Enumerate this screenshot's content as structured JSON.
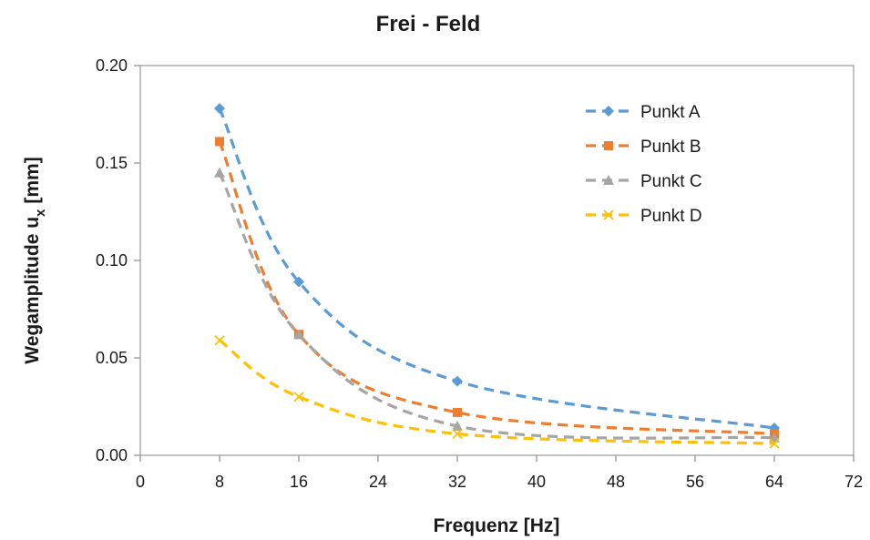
{
  "chart_data": {
    "type": "line",
    "title": "Frei - Feld",
    "xlabel": "Frequenz [Hz]",
    "ylabel": "Wegamplitude u",
    "ylabel_subscript": "x",
    "ylabel_unit": "[mm]",
    "xlim": [
      0,
      72
    ],
    "ylim": [
      0,
      0.2
    ],
    "x_ticks": [
      0,
      8,
      16,
      24,
      32,
      40,
      48,
      56,
      64,
      72
    ],
    "y_ticks": [
      0.0,
      0.05,
      0.1,
      0.15,
      0.2
    ],
    "x_tick_labels": [
      "0",
      "8",
      "16",
      "24",
      "32",
      "40",
      "48",
      "56",
      "64",
      "72"
    ],
    "y_tick_labels": [
      "0.00",
      "0.05",
      "0.10",
      "0.15",
      "0.20"
    ],
    "grid": false,
    "legend_position": "top-right",
    "x": [
      8,
      16,
      32,
      64
    ],
    "series": [
      {
        "name": "Punkt A",
        "values": [
          0.178,
          0.089,
          0.038,
          0.014
        ],
        "color": "#5b9bd5",
        "marker": "diamond"
      },
      {
        "name": "Punkt B",
        "values": [
          0.161,
          0.062,
          0.022,
          0.011
        ],
        "color": "#ed7d31",
        "marker": "square"
      },
      {
        "name": "Punkt C",
        "values": [
          0.145,
          0.062,
          0.015,
          0.009
        ],
        "color": "#a5a5a5",
        "marker": "triangle"
      },
      {
        "name": "Punkt D",
        "values": [
          0.059,
          0.03,
          0.011,
          0.006
        ],
        "color": "#ffc000",
        "marker": "x"
      }
    ]
  }
}
